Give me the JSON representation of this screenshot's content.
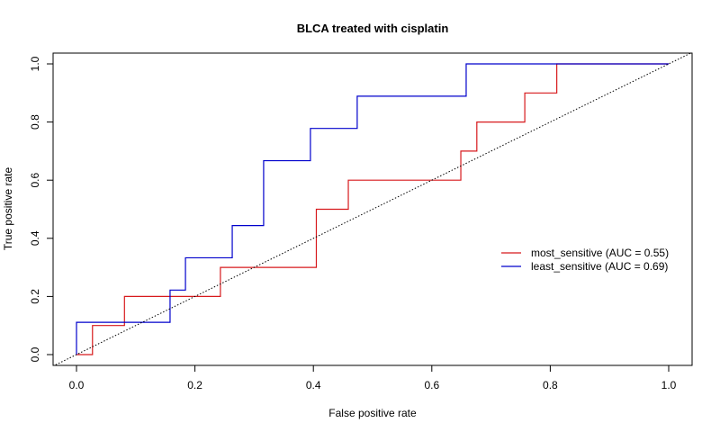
{
  "chart_data": {
    "type": "line",
    "title": "BLCA treated with cisplatin",
    "xlabel": "False positive rate",
    "ylabel": "True positive rate",
    "xlim": [
      0,
      1
    ],
    "ylim": [
      0,
      1
    ],
    "x_ticks": [
      "0.0",
      "0.2",
      "0.4",
      "0.6",
      "0.8",
      "1.0"
    ],
    "y_ticks": [
      "0.0",
      "0.2",
      "0.4",
      "0.6",
      "0.8",
      "1.0"
    ],
    "grid": false,
    "legend_position": "right",
    "series": [
      {
        "name": "most_sensitive (AUC = 0.55)",
        "color": "#d7191c",
        "style": "step",
        "points": [
          [
            0.0,
            0.0
          ],
          [
            0.027,
            0.0
          ],
          [
            0.027,
            0.1
          ],
          [
            0.081,
            0.1
          ],
          [
            0.081,
            0.2
          ],
          [
            0.243,
            0.2
          ],
          [
            0.243,
            0.3
          ],
          [
            0.405,
            0.3
          ],
          [
            0.405,
            0.5
          ],
          [
            0.459,
            0.5
          ],
          [
            0.459,
            0.6
          ],
          [
            0.649,
            0.6
          ],
          [
            0.649,
            0.7
          ],
          [
            0.676,
            0.7
          ],
          [
            0.676,
            0.8
          ],
          [
            0.757,
            0.8
          ],
          [
            0.757,
            0.9
          ],
          [
            0.811,
            0.9
          ],
          [
            0.811,
            1.0
          ],
          [
            1.0,
            1.0
          ]
        ]
      },
      {
        "name": "least_sensitive (AUC = 0.69)",
        "color": "#0000cc",
        "style": "step",
        "points": [
          [
            0.0,
            0.0
          ],
          [
            0.0,
            0.111
          ],
          [
            0.158,
            0.111
          ],
          [
            0.158,
            0.222
          ],
          [
            0.184,
            0.222
          ],
          [
            0.184,
            0.333
          ],
          [
            0.263,
            0.333
          ],
          [
            0.263,
            0.444
          ],
          [
            0.316,
            0.444
          ],
          [
            0.316,
            0.667
          ],
          [
            0.395,
            0.667
          ],
          [
            0.395,
            0.778
          ],
          [
            0.474,
            0.778
          ],
          [
            0.474,
            0.889
          ],
          [
            0.658,
            0.889
          ],
          [
            0.658,
            1.0
          ],
          [
            1.0,
            1.0
          ]
        ]
      },
      {
        "color": "#000000",
        "style": "dotted",
        "points": [
          [
            -0.04,
            -0.04
          ],
          [
            1.04,
            1.04
          ]
        ]
      }
    ]
  }
}
